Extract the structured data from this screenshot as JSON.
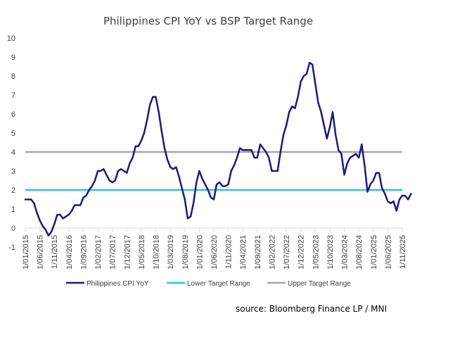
{
  "chart_data": {
    "type": "line",
    "title": "Philippines CPI YoY  vs BSP Target Range",
    "source": "source: Bloomberg Finance LP /  MNI",
    "xlabel": "",
    "ylabel": "",
    "ylim": [
      -1,
      10
    ],
    "yticks": [
      -1,
      0,
      1,
      2,
      3,
      4,
      5,
      6,
      7,
      8,
      9,
      10
    ],
    "ytick_labels": [
      "-1",
      "0",
      "1",
      "2",
      "3",
      "4",
      "5",
      "6",
      "7",
      "8",
      "9",
      "10"
    ],
    "x_start": "2015-01",
    "x_end": "2025-11",
    "xtick_labels": [
      "1/01/2015",
      "1/06/2015",
      "1/11/2015",
      "1/04/2016",
      "1/09/2016",
      "1/02/2017",
      "1/07/2017",
      "1/12/2017",
      "1/05/2018",
      "1/10/2018",
      "1/03/2019",
      "1/08/2019",
      "1/01/2020",
      "1/06/2020",
      "1/11/2020",
      "1/04/2021",
      "1/09/2021",
      "1/02/2022",
      "1/07/2022",
      "1/12/2022",
      "1/05/2023",
      "1/10/2023",
      "1/03/2024",
      "1/08/2024",
      "1/01/2025",
      "1/06/2025",
      "1/11/2025"
    ],
    "grid": false,
    "legend_position": "bottom",
    "series": [
      {
        "name": "Philippines CPI YoY",
        "color": "#1a1a7e",
        "values": [
          1.5,
          1.5,
          1.5,
          1.3,
          0.8,
          0.4,
          0.1,
          -0.1,
          -0.4,
          -0.2,
          0.2,
          0.7,
          0.7,
          0.5,
          0.6,
          0.7,
          0.9,
          1.2,
          1.2,
          1.2,
          1.6,
          1.7,
          2.0,
          2.2,
          2.5,
          3.0,
          3.0,
          3.1,
          2.8,
          2.5,
          2.4,
          2.5,
          3.0,
          3.1,
          3.0,
          2.9,
          3.4,
          3.7,
          4.3,
          4.3,
          4.6,
          5.0,
          5.7,
          6.5,
          6.9,
          6.9,
          6.1,
          5.1,
          4.2,
          3.6,
          3.2,
          3.1,
          3.2,
          2.7,
          2.1,
          1.5,
          0.5,
          0.6,
          1.3,
          2.4,
          3.0,
          2.6,
          2.3,
          2.0,
          1.6,
          1.5,
          2.3,
          2.4,
          2.2,
          2.2,
          2.3,
          3.0,
          3.3,
          3.7,
          4.2,
          4.1,
          4.1,
          4.1,
          4.1,
          3.7,
          3.7,
          4.4,
          4.2,
          4.0,
          3.7,
          3.0,
          3.0,
          3.0,
          4.0,
          4.9,
          5.4,
          6.1,
          6.4,
          6.3,
          6.9,
          7.7,
          8.0,
          8.1,
          8.7,
          8.6,
          7.6,
          6.6,
          6.1,
          5.4,
          4.7,
          5.3,
          6.1,
          4.9,
          4.1,
          3.9,
          2.8,
          3.4,
          3.7,
          3.8,
          3.9,
          3.7,
          4.4,
          3.3,
          1.9,
          2.3,
          2.5,
          2.9,
          2.9,
          2.1,
          1.8,
          1.4,
          1.3,
          1.4,
          0.9,
          1.5,
          1.7,
          1.7,
          1.5,
          1.8
        ]
      },
      {
        "name": "Lower Target Range",
        "color": "#2ec4d6",
        "constant": 2
      },
      {
        "name": "Upper Target Range",
        "color": "#a6a6a6",
        "constant": 4
      }
    ]
  }
}
